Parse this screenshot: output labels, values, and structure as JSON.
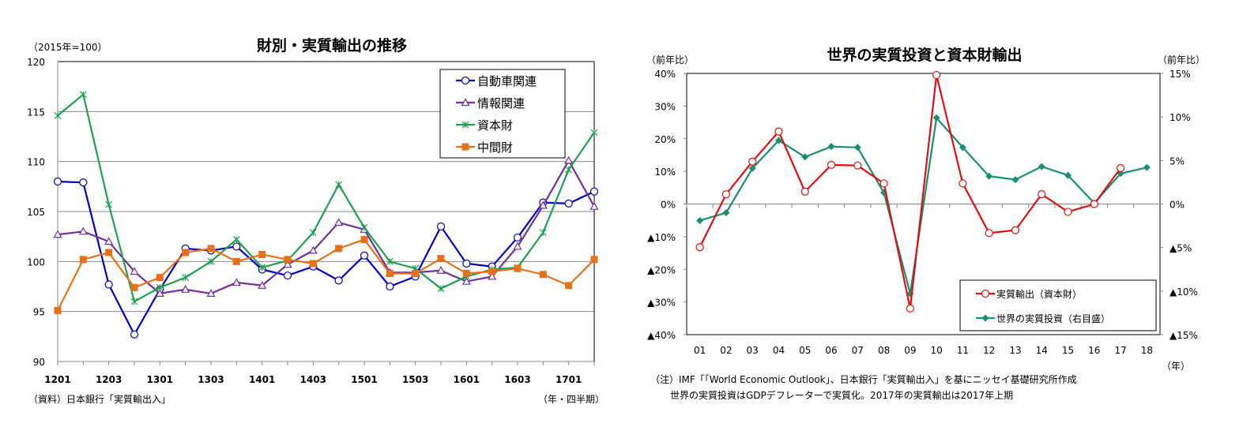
{
  "chart_data": [
    {
      "type": "line",
      "title": "財別・実質輸出の推移",
      "unit_label": "（2015年=100）",
      "xlabel": "（年・四半期）",
      "source": "（資料）日本銀行「実質輸出入」",
      "ylim": [
        90,
        120
      ],
      "yticks": [
        "120",
        "115",
        "110",
        "105",
        "100",
        "95",
        "90"
      ],
      "x": [
        "1201",
        "1202",
        "1203",
        "1204",
        "1301",
        "1302",
        "1303",
        "1304",
        "1401",
        "1402",
        "1403",
        "1404",
        "1501",
        "1502",
        "1503",
        "1504",
        "1601",
        "1602",
        "1603",
        "1604",
        "1701",
        "1702"
      ],
      "xtick_labels": [
        "1201",
        "1203",
        "1301",
        "1303",
        "1401",
        "1403",
        "1501",
        "1503",
        "1601",
        "1603",
        "1701"
      ],
      "grid": true,
      "legend_position": "top-right",
      "series": [
        {
          "name": "自動車関連",
          "color": "#0000c0",
          "marker": "circle",
          "values": [
            108.0,
            107.9,
            97.7,
            92.7,
            97.2,
            101.3,
            101.1,
            101.5,
            99.2,
            98.6,
            99.5,
            98.1,
            100.6,
            97.5,
            98.5,
            103.5,
            99.8,
            99.5,
            102.4,
            105.9,
            105.8,
            107.0
          ]
        },
        {
          "name": "情報関連",
          "color": "#7030a0",
          "marker": "triangle",
          "values": [
            102.7,
            103.0,
            102.0,
            99.0,
            96.8,
            97.2,
            96.8,
            97.9,
            97.6,
            99.7,
            101.1,
            103.9,
            103.2,
            98.9,
            98.9,
            99.1,
            98.0,
            98.5,
            101.5,
            105.6,
            110.1,
            105.5
          ]
        },
        {
          "name": "資本財",
          "color": "#20a050",
          "marker": "x",
          "values": [
            114.6,
            116.7,
            105.7,
            96.0,
            97.4,
            98.4,
            100.0,
            102.2,
            99.4,
            100.1,
            102.9,
            107.7,
            103.4,
            100.0,
            99.3,
            97.3,
            98.5,
            99.2,
            99.4,
            102.9,
            109.2,
            112.9
          ]
        },
        {
          "name": "中間財",
          "color": "#e87018",
          "marker": "square",
          "values": [
            95.1,
            100.2,
            100.9,
            97.4,
            98.4,
            100.9,
            101.3,
            100.0,
            100.7,
            100.2,
            99.8,
            101.3,
            102.2,
            98.8,
            98.8,
            100.3,
            98.8,
            99.0,
            99.3,
            98.7,
            97.6,
            100.2
          ]
        }
      ]
    },
    {
      "type": "line",
      "title": "世界の実質投資と資本財輸出",
      "left_unit_label": "（前年比）",
      "right_unit_label": "（前年比）",
      "xlabel": "（年）",
      "ylim_left": [
        -40,
        40
      ],
      "ylim_right": [
        -15,
        15
      ],
      "yticks_left": [
        "40%",
        "30%",
        "20%",
        "10%",
        "0%",
        "▲10%",
        "▲20%",
        "▲30%",
        "▲40%"
      ],
      "yticks_right": [
        "15%",
        "10%",
        "5%",
        "0%",
        "▲5%",
        "▲10%",
        "▲15%"
      ],
      "x": [
        "01",
        "02",
        "03",
        "04",
        "05",
        "06",
        "07",
        "08",
        "09",
        "10",
        "11",
        "12",
        "13",
        "14",
        "15",
        "16",
        "17",
        "18"
      ],
      "grid": false,
      "legend_position": "bottom-right",
      "notes": [
        "（注）IMF「「World Economic Outlook」、日本銀行「実質輸出入」を基にニッセイ基礎研究所作成",
        "世界の実質投資はGDPデフレーターで実質化。2017年の実質輸出は2017年上期"
      ],
      "series": [
        {
          "name": "実質輸出（資本財）",
          "axis": "left",
          "color": "#e01010",
          "marker": "circle",
          "values": [
            -13.2,
            3.0,
            13.0,
            22.2,
            3.8,
            12.0,
            11.8,
            6.3,
            -32.0,
            39.5,
            6.3,
            -8.9,
            -8.0,
            3.0,
            -2.4,
            0.0,
            11.0,
            null
          ]
        },
        {
          "name": "世界の実質投資（右目盛）",
          "axis": "right",
          "color": "#1a9070",
          "marker": "diamond",
          "values": [
            -1.9,
            -1.0,
            4.1,
            7.3,
            5.4,
            6.6,
            6.5,
            1.3,
            -10.3,
            9.9,
            6.5,
            3.2,
            2.8,
            4.3,
            3.3,
            0.1,
            3.5,
            4.2
          ]
        }
      ]
    }
  ]
}
